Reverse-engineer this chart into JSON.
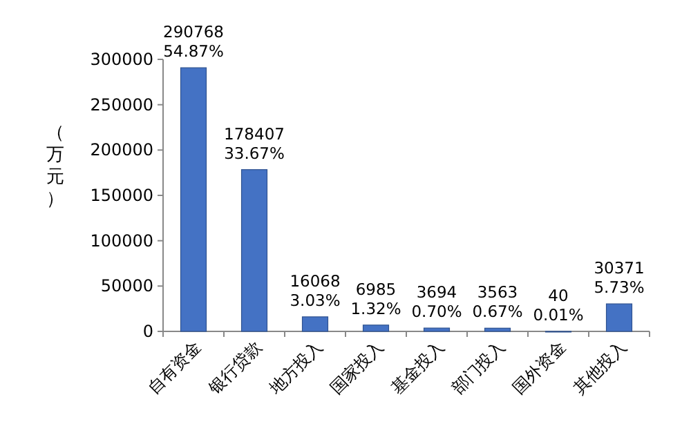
{
  "chart_data": {
    "type": "bar",
    "ylabel": "（万元）",
    "categories": [
      "自有资金",
      "银行贷款",
      "地方投入",
      "国家投入",
      "基金投入",
      "部门投入",
      "国外资金",
      "其他投入"
    ],
    "values": [
      290768,
      178407,
      16068,
      6985,
      3694,
      3563,
      40,
      30371
    ],
    "value_labels": [
      "290768 54.87%",
      "178407 33.67%",
      "16068 3.03%",
      "6985 1.32%",
      "3694 0.70%",
      "3563 0.67%",
      "40 0.01%",
      "30371 5.73%"
    ],
    "color": "#4472c4",
    "ylim": [
      0,
      300000
    ],
    "yticks": [
      0,
      50000,
      100000,
      150000,
      200000,
      250000,
      300000
    ],
    "grid": false
  }
}
